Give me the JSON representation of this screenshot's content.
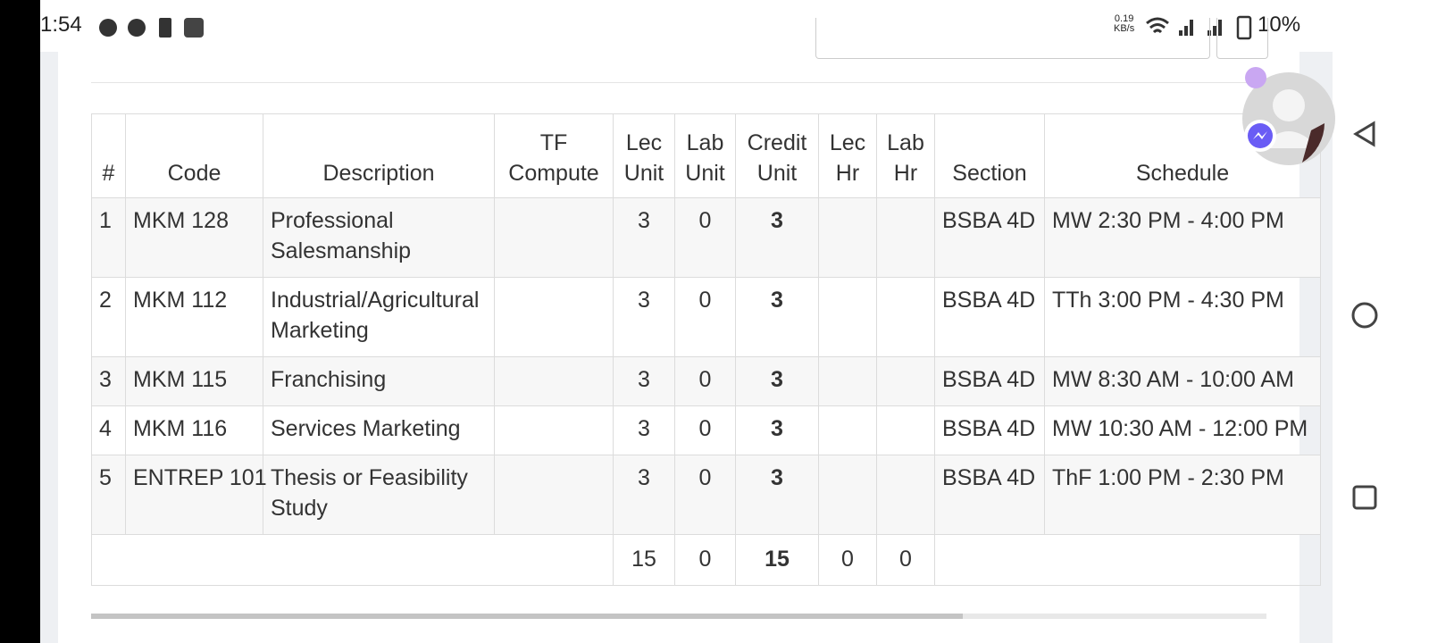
{
  "status": {
    "time": "1:54",
    "speed": "0.19",
    "speed_unit": "KB/s",
    "battery": "10%"
  },
  "table": {
    "headers": [
      "#",
      "Code",
      "Description",
      "TF Compute",
      "Lec Unit",
      "Lab Unit",
      "Credit Unit",
      "Lec Hr",
      "Lab Hr",
      "Section",
      "Schedule"
    ],
    "rows": [
      [
        "1",
        "MKM 128",
        "Professional Salesmanship",
        "",
        "3",
        "0",
        "3",
        "",
        "",
        "BSBA 4D",
        "MW 2:30 PM - 4:00 PM"
      ],
      [
        "2",
        "MKM 112",
        "Industrial/Agricultural Marketing",
        "",
        "3",
        "0",
        "3",
        "",
        "",
        "BSBA 4D",
        "TTh 3:00 PM - 4:30 PM"
      ],
      [
        "3",
        "MKM 115",
        "Franchising",
        "",
        "3",
        "0",
        "3",
        "",
        "",
        "BSBA 4D",
        "MW 8:30 AM - 10:00 AM"
      ],
      [
        "4",
        "MKM 116",
        "Services Marketing",
        "",
        "3",
        "0",
        "3",
        "",
        "",
        "BSBA 4D",
        "MW 10:30 AM - 12:00 PM"
      ],
      [
        "5",
        "ENTREP 101",
        "Thesis or Feasibility Study",
        "",
        "3",
        "0",
        "3",
        "",
        "",
        "BSBA 4D",
        "ThF 1:00 PM - 2:30 PM"
      ]
    ],
    "totals": {
      "lec_unit": "15",
      "lab_unit": "0",
      "credit_unit": "15",
      "lec_hr": "0",
      "lab_hr": "0"
    }
  }
}
